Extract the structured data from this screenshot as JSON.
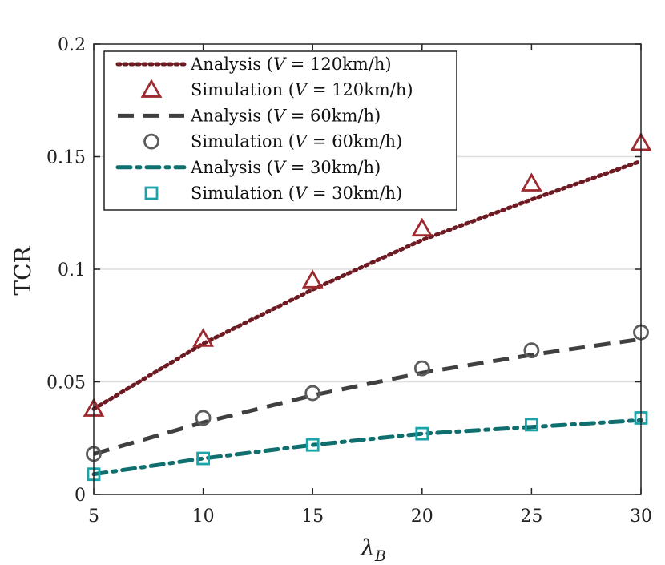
{
  "chart_data": {
    "type": "line",
    "title": "",
    "xlabel": "λ",
    "xlabel_subscript": "B",
    "ylabel": "TCR",
    "xlim": [
      5,
      30
    ],
    "ylim": [
      0,
      0.2
    ],
    "x_ticks": [
      5,
      10,
      15,
      20,
      25,
      30
    ],
    "x_tick_labels": [
      "5",
      "10",
      "15",
      "20",
      "25",
      "30"
    ],
    "y_ticks": [
      0,
      0.05,
      0.1,
      0.15,
      0.2
    ],
    "y_tick_labels": [
      "0",
      "0.05",
      "0.1",
      "0.15",
      "0.2"
    ],
    "grid": "horizontal",
    "legend_position": "top-left",
    "x": [
      5,
      10,
      15,
      20,
      25,
      30
    ],
    "series": [
      {
        "name": "Analysis (V = 120km/h)",
        "kind": "line",
        "dash": "dotted",
        "color": "#6e1a22",
        "values": [
          0.038,
          0.067,
          0.091,
          0.113,
          0.131,
          0.148
        ]
      },
      {
        "name": "Simulation (V = 120km/h)",
        "kind": "marker",
        "marker": "triangle",
        "color": "#9c2a2f",
        "values": [
          0.038,
          0.069,
          0.095,
          0.118,
          0.138,
          0.156
        ]
      },
      {
        "name": "Analysis (V = 60km/h)",
        "kind": "line",
        "dash": "dashed",
        "color": "#404040",
        "values": [
          0.018,
          0.032,
          0.044,
          0.054,
          0.062,
          0.069
        ]
      },
      {
        "name": "Simulation (V = 60km/h)",
        "kind": "marker",
        "marker": "circle",
        "color": "#5c5c5c",
        "values": [
          0.018,
          0.034,
          0.045,
          0.056,
          0.064,
          0.072
        ]
      },
      {
        "name": "Analysis (V = 30km/h)",
        "kind": "line",
        "dash": "dashdot",
        "color": "#0f6f6f",
        "values": [
          0.009,
          0.016,
          0.022,
          0.027,
          0.03,
          0.033
        ]
      },
      {
        "name": "Simulation (V = 30km/h)",
        "kind": "marker",
        "marker": "square",
        "color": "#1aa3a8",
        "values": [
          0.009,
          0.016,
          0.022,
          0.027,
          0.031,
          0.034
        ]
      }
    ],
    "legend": [
      {
        "prefix": "Analysis (",
        "var": "V",
        "suffix": " = 120km/h)"
      },
      {
        "prefix": "Simulation (",
        "var": "V",
        "suffix": " = 120km/h)"
      },
      {
        "prefix": "Analysis (",
        "var": "V",
        "suffix": " = 60km/h)"
      },
      {
        "prefix": "Simulation (",
        "var": "V",
        "suffix": " = 60km/h)"
      },
      {
        "prefix": "Analysis (",
        "var": "V",
        "suffix": " = 30km/h)"
      },
      {
        "prefix": "Simulation (",
        "var": "V",
        "suffix": " = 30km/h)"
      }
    ]
  }
}
